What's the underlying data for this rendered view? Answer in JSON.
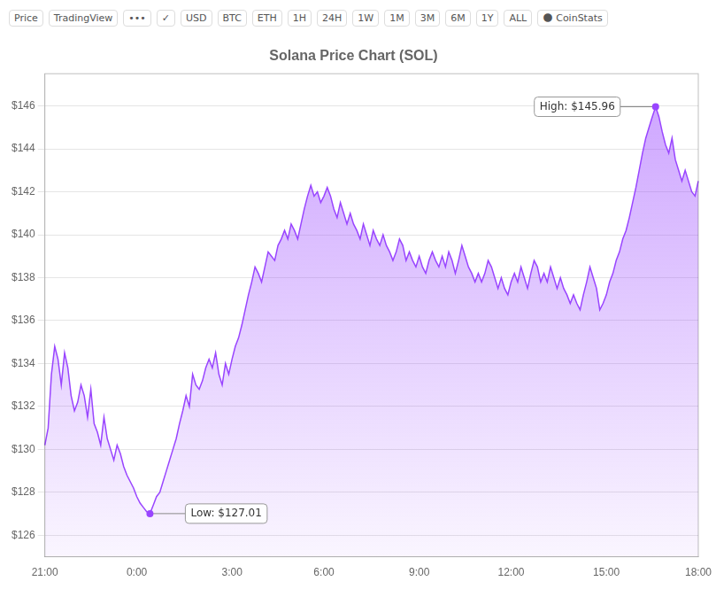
{
  "chart_data": {
    "type": "area",
    "title": "Solana Price Chart (SOL)",
    "color": "#9945FF",
    "grid": true,
    "ylim": [
      125.0,
      147.5
    ],
    "yticks": [
      {
        "value": 126,
        "label": "$126"
      },
      {
        "value": 128,
        "label": "$128"
      },
      {
        "value": 130,
        "label": "$130"
      },
      {
        "value": 132,
        "label": "$132"
      },
      {
        "value": 134,
        "label": "$134"
      },
      {
        "value": 136,
        "label": "$136"
      },
      {
        "value": 138,
        "label": "$138"
      },
      {
        "value": 140,
        "label": "$140"
      },
      {
        "value": 142,
        "label": "$142"
      },
      {
        "value": 144,
        "label": "$144"
      },
      {
        "value": 146,
        "label": "$146"
      }
    ],
    "annotations": [
      {
        "text": "High: $145.96",
        "value": 145.96
      },
      {
        "text": "Low: $127.01",
        "value": 127.01
      },
      {
        "text": "Price"
      },
      {
        "text": "TradingView"
      },
      {
        "text": "•••"
      },
      {
        "text": "✓"
      },
      {
        "text": "USD"
      },
      {
        "text": "BTC"
      },
      {
        "text": "ETH"
      },
      {
        "text": "1H"
      },
      {
        "text": "24H"
      },
      {
        "text": "1W"
      },
      {
        "text": "1M"
      },
      {
        "text": "3M"
      },
      {
        "text": "6M"
      },
      {
        "text": "1Y"
      },
      {
        "text": "ALL"
      },
      {
        "text": "🌑 CoinStats"
      }
    ],
    "categories": [
      "21:00",
      null,
      null,
      null,
      null,
      null,
      null,
      null,
      null,
      null,
      null,
      null,
      null,
      null,
      null,
      null,
      null,
      null,
      null,
      null,
      null,
      null,
      null,
      null,
      null,
      null,
      null,
      null,
      "0:00",
      null,
      null,
      null,
      null,
      null,
      null,
      null,
      null,
      null,
      null,
      null,
      null,
      null,
      null,
      null,
      null,
      null,
      null,
      null,
      null,
      null,
      null,
      null,
      null,
      null,
      null,
      null,
      null,
      "3:00",
      null,
      null,
      null,
      null,
      null,
      null,
      null,
      null,
      null,
      null,
      null,
      null,
      null,
      null,
      null,
      null,
      null,
      null,
      null,
      null,
      null,
      null,
      null,
      null,
      null,
      null,
      null,
      "6:00",
      null,
      null,
      null,
      null,
      null,
      null,
      null,
      null,
      null,
      null,
      null,
      null,
      null,
      null,
      null,
      null,
      null,
      null,
      null,
      null,
      null,
      null,
      null,
      null,
      null,
      null,
      null,
      null,
      "9:00",
      null,
      null,
      null,
      null,
      null,
      null,
      null,
      null,
      null,
      null,
      null,
      null,
      null,
      null,
      null,
      null,
      null,
      null,
      null,
      null,
      null,
      null,
      null,
      null,
      null,
      null,
      null,
      "12:00",
      null,
      null,
      null,
      null,
      null,
      null,
      null,
      null,
      null,
      null,
      null,
      null,
      null,
      null,
      null,
      null,
      null,
      null,
      null,
      null,
      null,
      null,
      null,
      null,
      null,
      null,
      null,
      null,
      "15:00",
      null,
      null,
      null,
      null,
      null,
      null,
      null,
      null,
      null,
      null,
      null,
      null,
      null,
      null,
      null,
      null,
      null,
      null,
      null,
      null,
      null,
      null,
      null,
      null,
      null,
      null,
      null,
      "18:00"
    ],
    "values": [
      130.2,
      131.0,
      133.5,
      134.8,
      134.2,
      133.0,
      134.5,
      133.8,
      132.5,
      131.8,
      132.2,
      133.0,
      132.5,
      131.5,
      132.8,
      131.2,
      130.8,
      130.2,
      131.5,
      130.5,
      130.0,
      129.5,
      130.2,
      129.8,
      129.2,
      128.8,
      128.5,
      128.2,
      127.8,
      127.5,
      127.3,
      127.1,
      127.01,
      127.4,
      127.8,
      128.0,
      128.5,
      129.0,
      129.5,
      130.0,
      130.5,
      131.2,
      131.8,
      132.5,
      132.0,
      133.5,
      133.0,
      132.8,
      133.2,
      133.8,
      134.2,
      133.8,
      134.5,
      133.5,
      133.0,
      134.0,
      133.5,
      134.2,
      134.8,
      135.2,
      135.8,
      136.5,
      137.2,
      137.8,
      138.5,
      138.2,
      137.8,
      138.5,
      139.2,
      139.0,
      138.8,
      139.5,
      139.8,
      140.2,
      139.8,
      140.5,
      140.2,
      139.8,
      140.5,
      141.2,
      141.8,
      142.3,
      141.8,
      142.0,
      141.5,
      141.8,
      142.2,
      141.8,
      141.2,
      140.8,
      141.5,
      141.0,
      140.5,
      141.0,
      140.5,
      140.2,
      139.8,
      140.5,
      140.0,
      139.5,
      140.2,
      139.8,
      139.5,
      140.0,
      139.5,
      139.2,
      138.8,
      139.2,
      139.8,
      139.5,
      138.8,
      139.2,
      138.8,
      138.5,
      139.0,
      138.5,
      138.2,
      138.8,
      139.2,
      138.8,
      138.5,
      139.0,
      138.5,
      139.2,
      138.8,
      138.2,
      138.8,
      139.5,
      139.0,
      138.5,
      138.2,
      137.8,
      138.2,
      137.8,
      138.2,
      138.8,
      138.5,
      138.0,
      137.5,
      138.0,
      137.5,
      137.2,
      137.8,
      138.2,
      137.8,
      138.5,
      138.0,
      137.5,
      138.2,
      138.8,
      138.5,
      137.8,
      138.2,
      137.8,
      138.5,
      138.0,
      137.5,
      138.0,
      137.5,
      137.2,
      136.8,
      137.2,
      136.8,
      136.5,
      137.2,
      137.8,
      138.5,
      138.0,
      137.5,
      136.5,
      136.8,
      137.2,
      137.8,
      138.2,
      138.8,
      139.2,
      139.8,
      140.2,
      140.8,
      141.5,
      142.2,
      143.0,
      143.8,
      144.5,
      145.0,
      145.5,
      145.96,
      145.5,
      144.8,
      144.2,
      143.8,
      144.5,
      143.5,
      143.0,
      142.5,
      143.0,
      142.5,
      142.0,
      141.8,
      142.5
    ]
  }
}
